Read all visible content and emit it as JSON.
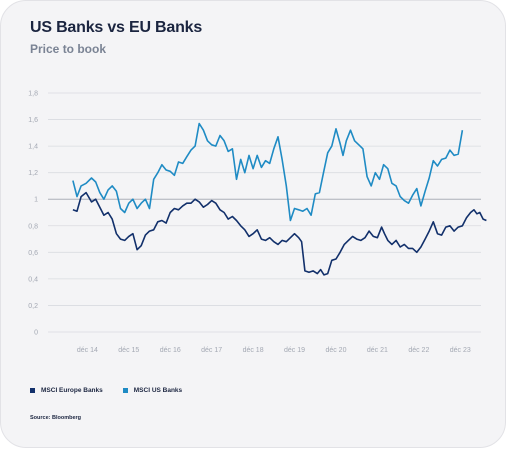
{
  "title": "US Banks vs EU Banks",
  "subtitle": "Price to book",
  "legend": [
    {
      "label": "MSCI Europe Banks",
      "color": "#12306b"
    },
    {
      "label": "MSCI US Banks",
      "color": "#1f8bc4"
    }
  ],
  "source": "Source: Bloomberg",
  "chart_data": {
    "type": "line",
    "title": "US Banks vs EU Banks",
    "subtitle": "Price to book",
    "ylim": [
      0,
      1.8
    ],
    "yticks": [
      "0",
      "0,2",
      "0,4",
      "0,6",
      "0,8",
      "1",
      "1,2",
      "1,4",
      "1,6",
      "1,8"
    ],
    "xlim": [
      2014.0,
      2024.45
    ],
    "xticks": [
      {
        "label": "déc 14",
        "x": 2014.95
      },
      {
        "label": "déc 15",
        "x": 2015.95
      },
      {
        "label": "déc 16",
        "x": 2016.95
      },
      {
        "label": "déc 17",
        "x": 2017.95
      },
      {
        "label": "déc 18",
        "x": 2018.95
      },
      {
        "label": "déc 19",
        "x": 2019.95
      },
      {
        "label": "déc 20",
        "x": 2020.95
      },
      {
        "label": "déc 21",
        "x": 2021.95
      },
      {
        "label": "déc 22",
        "x": 2022.95
      },
      {
        "label": "déc 23",
        "x": 2023.95
      }
    ],
    "grid": true,
    "highlight_line": 1,
    "legend_position": "bottom",
    "series": [
      {
        "name": "MSCI Europe Banks",
        "color": "#12306b",
        "points": [
          [
            2014.6,
            0.92
          ],
          [
            2014.7,
            0.91
          ],
          [
            2014.8,
            1.02
          ],
          [
            2014.92,
            1.05
          ],
          [
            2015.05,
            0.98
          ],
          [
            2015.15,
            1.0
          ],
          [
            2015.25,
            0.94
          ],
          [
            2015.35,
            0.88
          ],
          [
            2015.45,
            0.9
          ],
          [
            2015.55,
            0.85
          ],
          [
            2015.65,
            0.74
          ],
          [
            2015.75,
            0.7
          ],
          [
            2015.85,
            0.69
          ],
          [
            2015.95,
            0.72
          ],
          [
            2016.05,
            0.74
          ],
          [
            2016.15,
            0.62
          ],
          [
            2016.25,
            0.65
          ],
          [
            2016.35,
            0.73
          ],
          [
            2016.45,
            0.76
          ],
          [
            2016.55,
            0.77
          ],
          [
            2016.65,
            0.83
          ],
          [
            2016.75,
            0.84
          ],
          [
            2016.85,
            0.82
          ],
          [
            2016.95,
            0.9
          ],
          [
            2017.05,
            0.93
          ],
          [
            2017.15,
            0.92
          ],
          [
            2017.25,
            0.95
          ],
          [
            2017.35,
            0.97
          ],
          [
            2017.45,
            0.97
          ],
          [
            2017.55,
            1.0
          ],
          [
            2017.65,
            0.98
          ],
          [
            2017.75,
            0.94
          ],
          [
            2017.85,
            0.96
          ],
          [
            2017.95,
            0.99
          ],
          [
            2018.05,
            0.97
          ],
          [
            2018.15,
            0.92
          ],
          [
            2018.25,
            0.9
          ],
          [
            2018.35,
            0.85
          ],
          [
            2018.45,
            0.87
          ],
          [
            2018.55,
            0.84
          ],
          [
            2018.65,
            0.8
          ],
          [
            2018.75,
            0.77
          ],
          [
            2018.85,
            0.72
          ],
          [
            2018.95,
            0.74
          ],
          [
            2019.05,
            0.77
          ],
          [
            2019.15,
            0.7
          ],
          [
            2019.25,
            0.69
          ],
          [
            2019.35,
            0.71
          ],
          [
            2019.45,
            0.68
          ],
          [
            2019.55,
            0.66
          ],
          [
            2019.65,
            0.69
          ],
          [
            2019.75,
            0.68
          ],
          [
            2019.85,
            0.71
          ],
          [
            2019.95,
            0.74
          ],
          [
            2020.05,
            0.71
          ],
          [
            2020.12,
            0.68
          ],
          [
            2020.2,
            0.46
          ],
          [
            2020.3,
            0.45
          ],
          [
            2020.4,
            0.46
          ],
          [
            2020.5,
            0.44
          ],
          [
            2020.58,
            0.47
          ],
          [
            2020.66,
            0.43
          ],
          [
            2020.75,
            0.44
          ],
          [
            2020.85,
            0.54
          ],
          [
            2020.95,
            0.55
          ],
          [
            2021.05,
            0.6
          ],
          [
            2021.15,
            0.66
          ],
          [
            2021.25,
            0.69
          ],
          [
            2021.35,
            0.72
          ],
          [
            2021.45,
            0.7
          ],
          [
            2021.55,
            0.69
          ],
          [
            2021.65,
            0.71
          ],
          [
            2021.75,
            0.76
          ],
          [
            2021.85,
            0.72
          ],
          [
            2021.95,
            0.71
          ],
          [
            2022.05,
            0.79
          ],
          [
            2022.12,
            0.74
          ],
          [
            2022.2,
            0.69
          ],
          [
            2022.3,
            0.66
          ],
          [
            2022.4,
            0.69
          ],
          [
            2022.5,
            0.64
          ],
          [
            2022.6,
            0.66
          ],
          [
            2022.7,
            0.63
          ],
          [
            2022.8,
            0.63
          ],
          [
            2022.9,
            0.6
          ],
          [
            2023.0,
            0.64
          ],
          [
            2023.1,
            0.7
          ],
          [
            2023.2,
            0.76
          ],
          [
            2023.3,
            0.83
          ],
          [
            2023.4,
            0.74
          ],
          [
            2023.5,
            0.73
          ],
          [
            2023.6,
            0.79
          ],
          [
            2023.7,
            0.8
          ],
          [
            2023.8,
            0.76
          ],
          [
            2023.9,
            0.79
          ],
          [
            2024.0,
            0.8
          ],
          [
            2024.1,
            0.86
          ],
          [
            2024.2,
            0.9
          ],
          [
            2024.28,
            0.92
          ],
          [
            2024.35,
            0.89
          ],
          [
            2024.42,
            0.9
          ],
          [
            2024.5,
            0.85
          ],
          [
            2024.58,
            0.84
          ]
        ]
      },
      {
        "name": "MSCI US Banks",
        "color": "#1f8bc4",
        "points": [
          [
            2014.6,
            1.14
          ],
          [
            2014.7,
            1.02
          ],
          [
            2014.8,
            1.1
          ],
          [
            2014.92,
            1.12
          ],
          [
            2015.05,
            1.16
          ],
          [
            2015.15,
            1.13
          ],
          [
            2015.25,
            1.05
          ],
          [
            2015.35,
            1.0
          ],
          [
            2015.45,
            1.07
          ],
          [
            2015.55,
            1.1
          ],
          [
            2015.65,
            1.06
          ],
          [
            2015.75,
            0.93
          ],
          [
            2015.85,
            0.9
          ],
          [
            2015.95,
            0.97
          ],
          [
            2016.05,
            1.0
          ],
          [
            2016.15,
            0.93
          ],
          [
            2016.25,
            0.97
          ],
          [
            2016.35,
            1.0
          ],
          [
            2016.45,
            0.93
          ],
          [
            2016.55,
            1.15
          ],
          [
            2016.65,
            1.2
          ],
          [
            2016.75,
            1.26
          ],
          [
            2016.85,
            1.22
          ],
          [
            2016.95,
            1.21
          ],
          [
            2017.05,
            1.18
          ],
          [
            2017.15,
            1.28
          ],
          [
            2017.25,
            1.27
          ],
          [
            2017.35,
            1.32
          ],
          [
            2017.45,
            1.37
          ],
          [
            2017.55,
            1.4
          ],
          [
            2017.65,
            1.57
          ],
          [
            2017.75,
            1.52
          ],
          [
            2017.85,
            1.44
          ],
          [
            2017.95,
            1.41
          ],
          [
            2018.05,
            1.4
          ],
          [
            2018.15,
            1.48
          ],
          [
            2018.25,
            1.44
          ],
          [
            2018.35,
            1.36
          ],
          [
            2018.45,
            1.38
          ],
          [
            2018.55,
            1.15
          ],
          [
            2018.65,
            1.3
          ],
          [
            2018.75,
            1.2
          ],
          [
            2018.85,
            1.33
          ],
          [
            2018.95,
            1.23
          ],
          [
            2019.05,
            1.33
          ],
          [
            2019.15,
            1.24
          ],
          [
            2019.25,
            1.29
          ],
          [
            2019.35,
            1.27
          ],
          [
            2019.45,
            1.38
          ],
          [
            2019.55,
            1.47
          ],
          [
            2019.65,
            1.3
          ],
          [
            2019.75,
            1.1
          ],
          [
            2019.85,
            0.84
          ],
          [
            2019.95,
            0.93
          ],
          [
            2020.05,
            0.92
          ],
          [
            2020.15,
            0.91
          ],
          [
            2020.25,
            0.93
          ],
          [
            2020.35,
            0.88
          ],
          [
            2020.45,
            1.04
          ],
          [
            2020.55,
            1.05
          ],
          [
            2020.65,
            1.2
          ],
          [
            2020.75,
            1.35
          ],
          [
            2020.85,
            1.4
          ],
          [
            2020.95,
            1.53
          ],
          [
            2021.05,
            1.42
          ],
          [
            2021.12,
            1.33
          ],
          [
            2021.2,
            1.44
          ],
          [
            2021.3,
            1.52
          ],
          [
            2021.4,
            1.44
          ],
          [
            2021.5,
            1.41
          ],
          [
            2021.6,
            1.38
          ],
          [
            2021.7,
            1.17
          ],
          [
            2021.8,
            1.1
          ],
          [
            2021.9,
            1.2
          ],
          [
            2022.0,
            1.15
          ],
          [
            2022.1,
            1.26
          ],
          [
            2022.2,
            1.23
          ],
          [
            2022.3,
            1.12
          ],
          [
            2022.4,
            1.1
          ],
          [
            2022.5,
            1.02
          ],
          [
            2022.6,
            0.99
          ],
          [
            2022.7,
            0.97
          ],
          [
            2022.8,
            1.03
          ],
          [
            2022.9,
            1.08
          ],
          [
            2023.0,
            0.95
          ],
          [
            2023.1,
            1.06
          ],
          [
            2023.2,
            1.16
          ],
          [
            2023.3,
            1.29
          ],
          [
            2023.4,
            1.25
          ],
          [
            2023.5,
            1.3
          ],
          [
            2023.6,
            1.31
          ],
          [
            2023.7,
            1.37
          ],
          [
            2023.8,
            1.33
          ],
          [
            2023.9,
            1.34
          ],
          [
            2024.0,
            1.52
          ]
        ]
      }
    ]
  }
}
